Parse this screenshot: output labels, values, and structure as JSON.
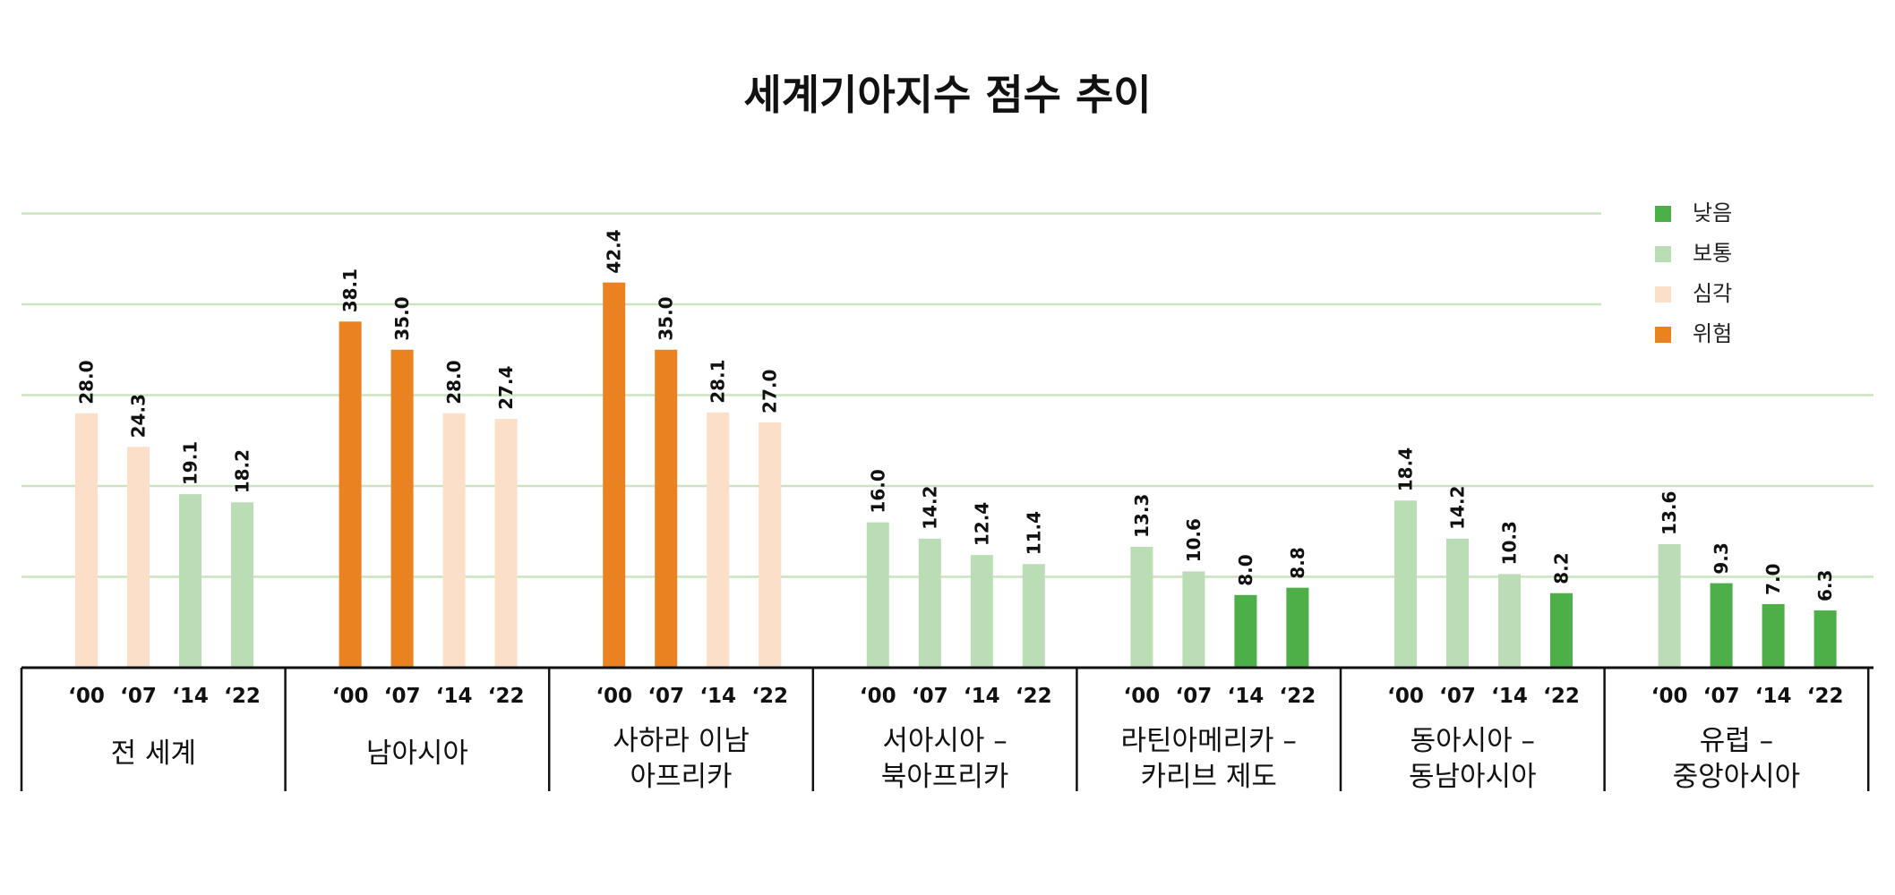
{
  "chart_data": {
    "type": "bar",
    "title": "세계기아지수 점수 추이",
    "ylim": [
      0,
      50
    ],
    "grid": true,
    "legend_position": "top-right",
    "legend": [
      {
        "label": "낮음",
        "color": "#4caf48"
      },
      {
        "label": "보통",
        "color": "#bbddb5"
      },
      {
        "label": "심각",
        "color": "#fcdfc8"
      },
      {
        "label": "위험",
        "color": "#ea8222"
      }
    ],
    "level_colors": {
      "낮음": "#4caf48",
      "보통": "#bbddb5",
      "심각": "#fcdfc8",
      "위험": "#ea8222"
    },
    "groups": [
      {
        "name": [
          "전 세계"
        ],
        "years": [
          "‘00",
          "‘07",
          "‘14",
          "‘22"
        ],
        "values": [
          28.0,
          24.3,
          19.1,
          18.2
        ],
        "value_labels": [
          "28.0",
          "24.3",
          "19.1",
          "18.2"
        ],
        "levels": [
          "심각",
          "심각",
          "보통",
          "보통"
        ]
      },
      {
        "name": [
          "남아시아"
        ],
        "years": [
          "‘00",
          "‘07",
          "‘14",
          "‘22"
        ],
        "values": [
          38.1,
          35.0,
          28.0,
          27.4
        ],
        "value_labels": [
          "38.1",
          "35.0",
          "28.0",
          "27.4"
        ],
        "levels": [
          "위험",
          "위험",
          "심각",
          "심각"
        ]
      },
      {
        "name": [
          "사하라 이남",
          "아프리카"
        ],
        "years": [
          "‘00",
          "‘07",
          "‘14",
          "‘22"
        ],
        "values": [
          42.4,
          35.0,
          28.1,
          27.0
        ],
        "value_labels": [
          "42.4",
          "35.0",
          "28.1",
          "27.0"
        ],
        "levels": [
          "위험",
          "위험",
          "심각",
          "심각"
        ]
      },
      {
        "name": [
          "서아시아 –",
          "북아프리카"
        ],
        "years": [
          "‘00",
          "‘07",
          "‘14",
          "‘22"
        ],
        "values": [
          16.0,
          14.2,
          12.4,
          11.4
        ],
        "value_labels": [
          "16.0",
          "14.2",
          "12.4",
          "11.4"
        ],
        "levels": [
          "보통",
          "보통",
          "보통",
          "보통"
        ]
      },
      {
        "name": [
          "라틴아메리카 –",
          "카리브 제도"
        ],
        "years": [
          "‘00",
          "‘07",
          "‘14",
          "‘22"
        ],
        "values": [
          13.3,
          10.6,
          8.0,
          8.8
        ],
        "value_labels": [
          "13.3",
          "10.6",
          "8.0",
          "8.8"
        ],
        "levels": [
          "보통",
          "보통",
          "낮음",
          "낮음"
        ]
      },
      {
        "name": [
          "동아시아 –",
          "동남아시아"
        ],
        "years": [
          "‘00",
          "‘07",
          "‘14",
          "‘22"
        ],
        "values": [
          18.4,
          14.2,
          10.3,
          8.2
        ],
        "value_labels": [
          "18.4",
          "14.2",
          "10.3",
          "8.2"
        ],
        "levels": [
          "보통",
          "보통",
          "보통",
          "낮음"
        ]
      },
      {
        "name": [
          "유럽 –",
          "중앙아시아"
        ],
        "years": [
          "‘00",
          "‘07",
          "‘14",
          "‘22"
        ],
        "values": [
          13.6,
          9.3,
          7.0,
          6.3
        ],
        "value_labels": [
          "13.6",
          "9.3",
          "7.0",
          "6.3"
        ],
        "levels": [
          "보통",
          "낮음",
          "낮음",
          "낮음"
        ]
      }
    ]
  }
}
